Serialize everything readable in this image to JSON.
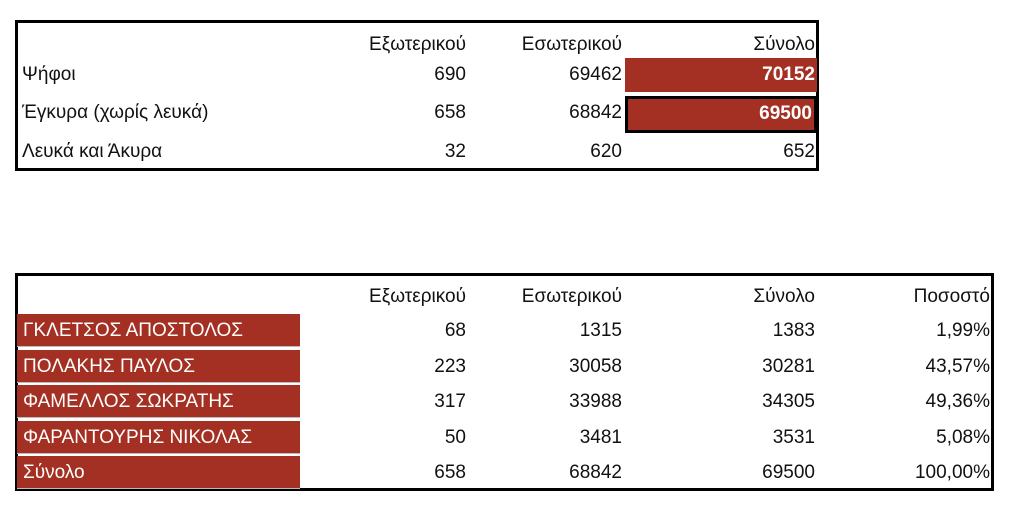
{
  "table1": {
    "header": [
      "Εξωτερικού",
      "Εσωτερικού",
      "Σύνολο"
    ],
    "rows": [
      [
        "Ψήφοι",
        "690",
        "69462",
        "70152"
      ],
      [
        "Έγκυρα (χωρίς λευκά)",
        "658",
        "68842",
        "69500"
      ],
      [
        "Λευκά και Άκυρα",
        "32",
        "620",
        "652"
      ]
    ]
  },
  "table2": {
    "header": [
      "Εξωτερικού",
      "Εσωτερικού",
      "Σύνολο",
      "Ποσοστό"
    ],
    "rows": [
      [
        "ΓΚΛΕΤΣΟΣ ΑΠΟΣΤΟΛΟΣ",
        "68",
        "1315",
        "1383",
        "1,99%"
      ],
      [
        "ΠΟΛΑΚΗΣ ΠΑΥΛΟΣ",
        "223",
        "30058",
        "30281",
        "43,57%"
      ],
      [
        "ΦΑΜΕΛΛΟΣ ΣΩΚΡΑΤΗΣ",
        "317",
        "33988",
        "34305",
        "49,36%"
      ],
      [
        "ΦΑΡΑΝΤΟΥΡΗΣ ΝΙΚΟΛΑΣ",
        "50",
        "3481",
        "3531",
        "5,08%"
      ],
      [
        "Σύνολο",
        "658",
        "68842",
        "69500",
        "100,00%"
      ]
    ]
  }
}
